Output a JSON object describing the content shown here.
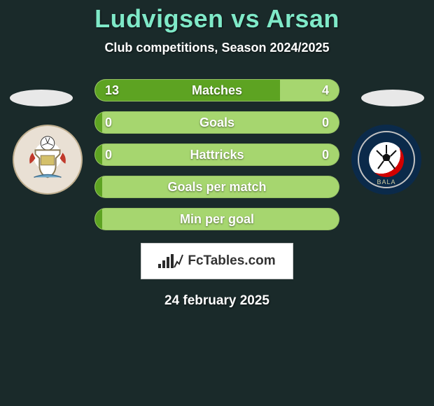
{
  "title": "Ludvigsen vs Arsan",
  "subtitle": "Club competitions, Season 2024/2025",
  "date": "24 february 2025",
  "brand": "FcTables.com",
  "colors": {
    "bar_dark": "#5da322",
    "bar_light": "#a6d66f",
    "accent_text": "#7fe9c8"
  },
  "rows": [
    {
      "label": "Matches",
      "left": "13",
      "right": "4",
      "left_pct": 76,
      "show_vals": true
    },
    {
      "label": "Goals",
      "left": "0",
      "right": "0",
      "left_pct": 3,
      "show_vals": true
    },
    {
      "label": "Hattricks",
      "left": "0",
      "right": "0",
      "left_pct": 3,
      "show_vals": true
    },
    {
      "label": "Goals per match",
      "left": "",
      "right": "",
      "left_pct": 3,
      "show_vals": false
    },
    {
      "label": "Min per goal",
      "left": "",
      "right": "",
      "left_pct": 3,
      "show_vals": false
    }
  ],
  "crest_left_name": "pontypridd-crest",
  "crest_right_name": "bala-town-crest"
}
